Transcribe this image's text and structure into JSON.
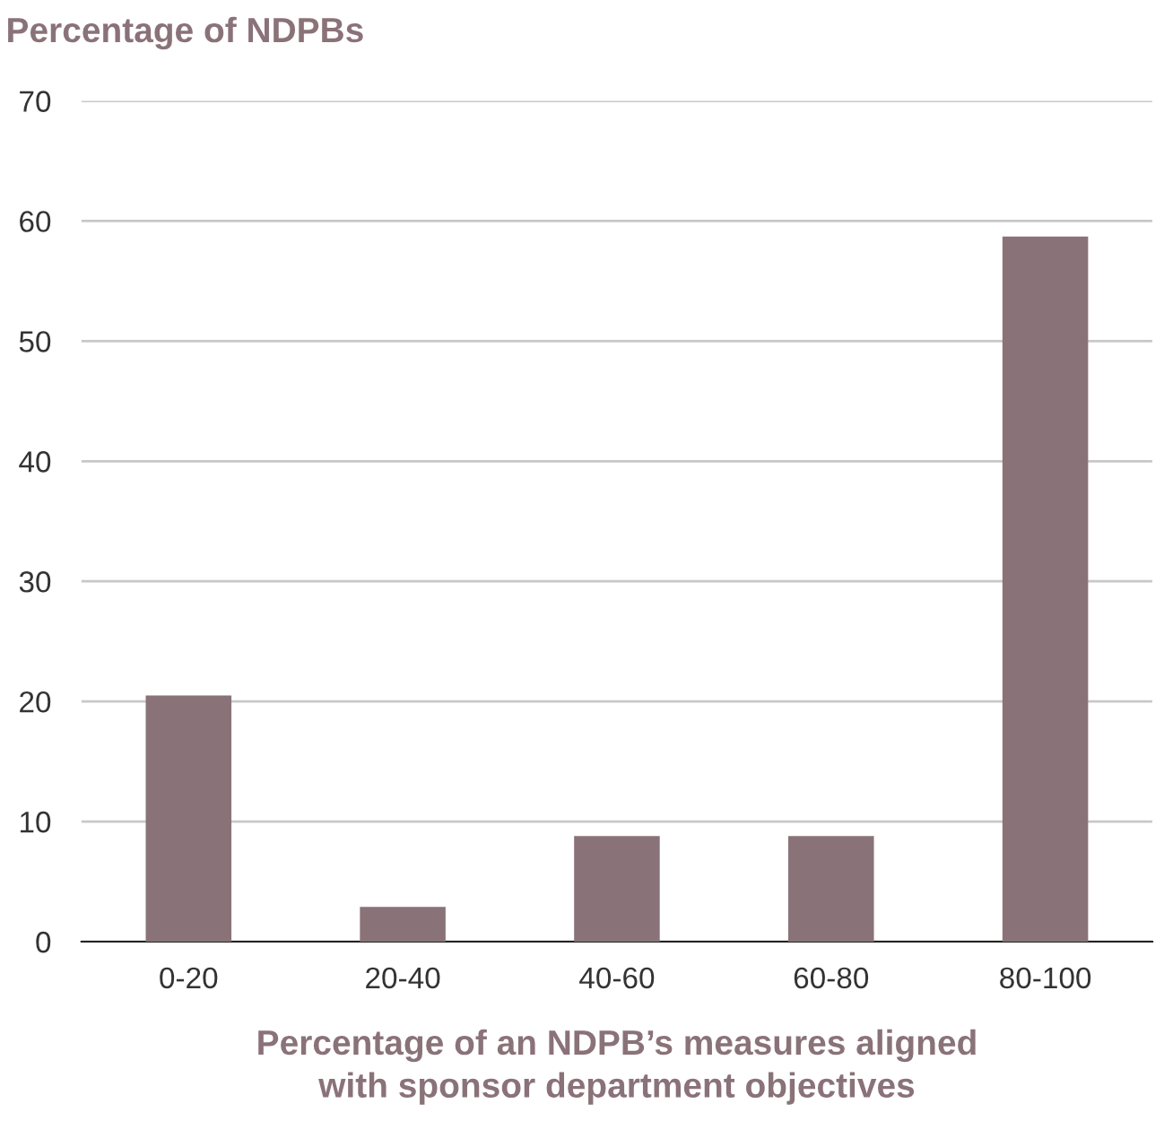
{
  "chart_data": {
    "type": "bar",
    "ylabel": "Percentage of NDPBs",
    "xlabel": "Percentage of an NDPB’s measures aligned\nwith sponsor department objectives",
    "categories": [
      "0-20",
      "20-40",
      "40-60",
      "60-80",
      "80-100"
    ],
    "values": [
      20.5,
      2.9,
      8.8,
      8.8,
      58.7
    ],
    "color": "#8a7279",
    "ylim": [
      0,
      70
    ],
    "yticks": [
      0,
      10,
      20,
      30,
      40,
      50,
      60,
      70
    ],
    "grid": "y"
  }
}
